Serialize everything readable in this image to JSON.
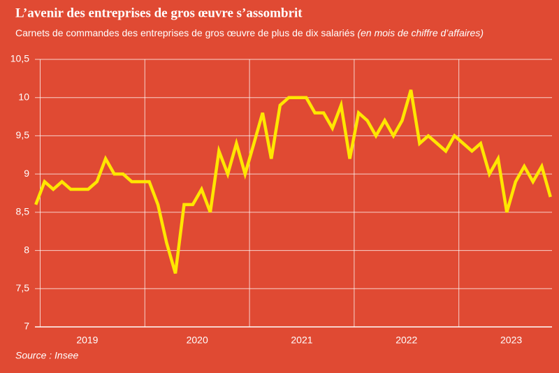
{
  "chart_data": {
    "type": "line",
    "title": "L’avenir des entreprises de gros œuvre s’assombrit",
    "subtitle": "Carnets de commandes des entreprises de gros œuvre de plus de dix salariés",
    "subtitle_note": "(en mois de chiffre d’affaires)",
    "source": "Source : Insee",
    "background": "#e04a33",
    "x": [
      2018.958,
      2019.042,
      2019.125,
      2019.208,
      2019.292,
      2019.375,
      2019.458,
      2019.542,
      2019.625,
      2019.708,
      2019.792,
      2019.875,
      2019.958,
      2020.042,
      2020.125,
      2020.208,
      2020.292,
      2020.375,
      2020.458,
      2020.542,
      2020.625,
      2020.708,
      2020.792,
      2020.875,
      2020.958,
      2021.042,
      2021.125,
      2021.208,
      2021.292,
      2021.375,
      2021.458,
      2021.542,
      2021.625,
      2021.708,
      2021.792,
      2021.875,
      2021.958,
      2022.042,
      2022.125,
      2022.208,
      2022.292,
      2022.375,
      2022.458,
      2022.542,
      2022.625,
      2022.708,
      2022.792,
      2022.875,
      2022.958,
      2023.042,
      2023.125,
      2023.208,
      2023.292,
      2023.375,
      2023.458,
      2023.542,
      2023.625,
      2023.708,
      2023.792,
      2023.875
    ],
    "series": [
      {
        "color": "#ffe600",
        "values": [
          8.6,
          8.9,
          8.8,
          8.9,
          8.8,
          8.8,
          8.8,
          8.9,
          9.2,
          9.0,
          9.0,
          8.9,
          8.9,
          8.9,
          8.6,
          8.1,
          7.7,
          8.6,
          8.6,
          8.8,
          8.5,
          9.3,
          9.0,
          9.4,
          9.0,
          9.4,
          9.8,
          9.2,
          9.9,
          10.0,
          10.0,
          10.0,
          9.8,
          9.8,
          9.6,
          9.9,
          9.2,
          9.8,
          9.7,
          9.5,
          9.7,
          9.5,
          9.7,
          10.1,
          9.4,
          9.5,
          9.4,
          9.3,
          9.5,
          9.4,
          9.3,
          9.4,
          9.0,
          9.2,
          8.5,
          8.9,
          9.1,
          8.9,
          9.1,
          8.7
        ]
      }
    ],
    "xlim": [
      2018.95,
      2023.89
    ],
    "xticks": [
      {
        "value": 2019.45,
        "label": "2019"
      },
      {
        "value": 2020.5,
        "label": "2020"
      },
      {
        "value": 2021.5,
        "label": "2021"
      },
      {
        "value": 2022.5,
        "label": "2022"
      },
      {
        "value": 2023.5,
        "label": "2023"
      }
    ],
    "xgrid": [
      2019,
      2020,
      2021,
      2022,
      2023
    ],
    "ylim": [
      7,
      10.5
    ],
    "yticks": [
      7,
      {
        "value": 7.5,
        "label": "7,5"
      },
      8,
      {
        "value": 8.5,
        "label": "8,5"
      },
      9,
      {
        "value": 9.5,
        "label": "9,5"
      },
      10,
      {
        "value": 10.5,
        "label": "10,5"
      }
    ],
    "grid": true
  }
}
